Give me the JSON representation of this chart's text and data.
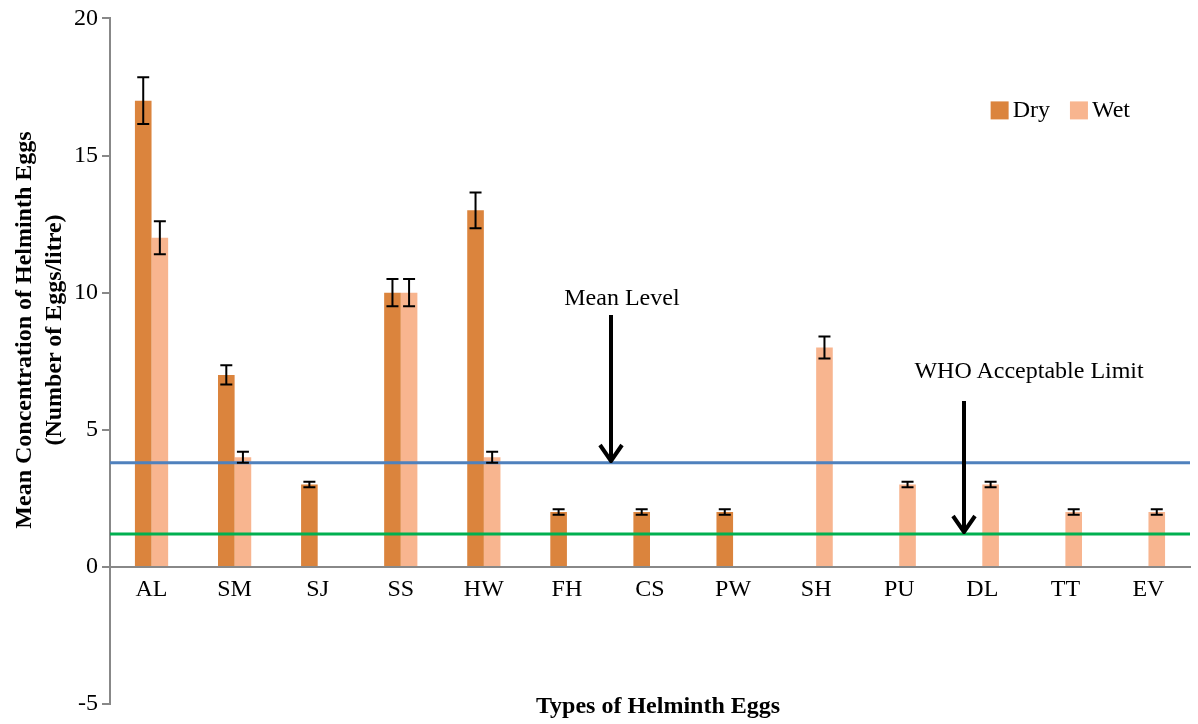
{
  "chart_data": {
    "type": "bar",
    "xlabel": "Types of Helminth Eggs",
    "ylabel": "Mean Concentration of Helminth Eggs (Number of Eggs/litre)",
    "categories": [
      "AL",
      "SM",
      "SJ",
      "SS",
      "HW",
      "FH",
      "CS",
      "PW",
      "SH",
      "PU",
      "DL",
      "TT",
      "EV"
    ],
    "series": [
      {
        "name": "Dry",
        "color": "#db843d",
        "values": [
          17,
          7,
          3,
          10,
          13,
          2,
          2,
          2,
          0,
          0,
          0,
          0,
          0
        ],
        "errors": [
          0.85,
          0.35,
          0.1,
          0.5,
          0.65,
          0.1,
          0.1,
          0.1,
          null,
          null,
          null,
          null,
          null
        ]
      },
      {
        "name": "Wet",
        "color": "#f8b58f",
        "values": [
          12,
          4,
          0,
          10,
          4,
          0,
          0,
          0,
          8,
          3,
          3,
          2,
          2
        ],
        "errors": [
          0.6,
          0.2,
          null,
          0.5,
          0.2,
          null,
          null,
          null,
          0.4,
          0.1,
          0.1,
          0.1,
          0.1
        ]
      }
    ],
    "ylim": [
      -5,
      20
    ],
    "yticks": [
      -5,
      0,
      5,
      10,
      15,
      20
    ],
    "ref_lines": [
      {
        "axis": "y",
        "value": 3.8,
        "label": "Mean Level",
        "color": "#4f81bd"
      },
      {
        "axis": "y",
        "value": 1.2,
        "label": "WHO Acceptable Limit",
        "color": "#00b050"
      }
    ],
    "grid": false,
    "legend": "top right"
  }
}
